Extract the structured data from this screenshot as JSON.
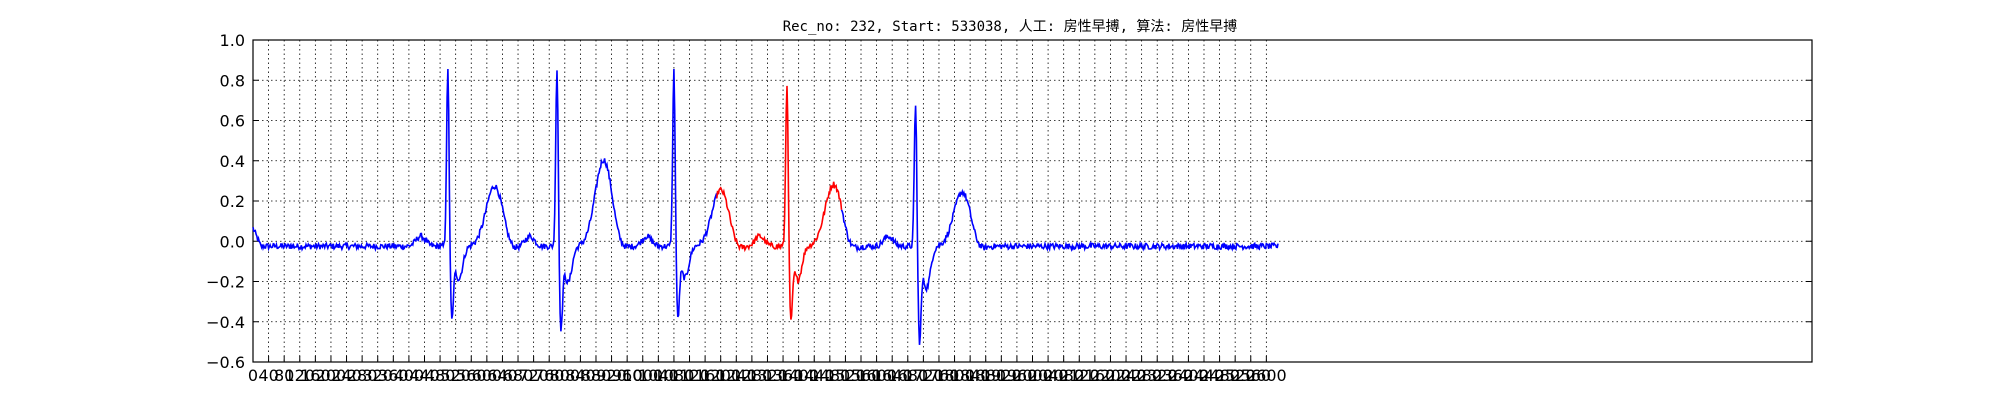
{
  "chart_data": {
    "type": "line",
    "title": "Rec_no: 232, Start: 533038, 人工: 房性早搏, 算法: 房性早搏",
    "xlabel": "",
    "ylabel": "",
    "xlim": [
      0,
      4000
    ],
    "ylim": [
      -0.6,
      1.0
    ],
    "y_ticks": [
      "1.0",
      "0.8",
      "0.6",
      "0.4",
      "0.2",
      "0.0",
      "−0.2",
      "−0.4",
      "−0.6"
    ],
    "x_ticks": [
      "0",
      "40",
      "80",
      "120",
      "160",
      "200",
      "240",
      "280",
      "320",
      "360",
      "400",
      "440",
      "480",
      "520",
      "560",
      "600",
      "640",
      "680",
      "720",
      "760",
      "800",
      "840",
      "880",
      "920",
      "960",
      "1000",
      "1040",
      "1080",
      "1120",
      "1160",
      "1200",
      "1240",
      "1280",
      "1320",
      "1360",
      "1400",
      "1440",
      "1480",
      "1520",
      "1560",
      "1600",
      "1640",
      "1680",
      "1720",
      "1760",
      "1800",
      "1840",
      "1880",
      "1920",
      "1960",
      "2000",
      "2040",
      "2080",
      "2120",
      "2160",
      "2200",
      "2240",
      "2280",
      "2320",
      "2360",
      "2400",
      "2440",
      "2480",
      "2520",
      "2560",
      "2600"
    ],
    "grid": true,
    "series_colors": {
      "normal": "#0000ff",
      "highlight": "#ff0000"
    },
    "highlight_range": [
      1190,
      1510
    ],
    "beats": [
      {
        "r": 500,
        "r_amp": 0.86,
        "s_amp": -0.36,
        "t_amp": 0.28
      },
      {
        "r": 780,
        "r_amp": 0.87,
        "s_amp": -0.4,
        "t_amp": 0.41
      },
      {
        "r": 1080,
        "r_amp": 0.86,
        "s_amp": -0.35,
        "t_amp": 0.26
      },
      {
        "r": 1370,
        "r_amp": 0.8,
        "s_amp": -0.37,
        "t_amp": 0.29
      },
      {
        "r": 1700,
        "r_amp": 0.7,
        "s_amp": -0.46,
        "t_amp": 0.25
      }
    ],
    "signal_end": 2630
  }
}
